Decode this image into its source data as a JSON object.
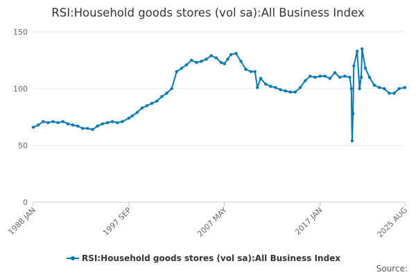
{
  "chart_data": {
    "type": "line",
    "title": "RSI:Household goods stores (vol sa):All Business Index",
    "xlabel": "",
    "ylabel": "",
    "ylim": [
      0,
      150
    ],
    "yticks": [
      0,
      50,
      100,
      150
    ],
    "x_range": [
      "1988 JAN",
      "2025 AUG"
    ],
    "xticks": [
      "1988 JAN",
      "1997 SEP",
      "2007 MAY",
      "2017 JAN",
      "2025 AUG"
    ],
    "grid": "horizontal",
    "legend_position": "bottom",
    "series": [
      {
        "name": "RSI:Household goods stores (vol sa):All Business Index",
        "color": "#0077b3",
        "points": [
          [
            "1988 JAN",
            66
          ],
          [
            "1988 JUL",
            68
          ],
          [
            "1989 JAN",
            71
          ],
          [
            "1989 JUL",
            70
          ],
          [
            "1990 JAN",
            71
          ],
          [
            "1990 JUL",
            70
          ],
          [
            "1991 JAN",
            71
          ],
          [
            "1991 JUL",
            69
          ],
          [
            "1992 JAN",
            68
          ],
          [
            "1992 JUL",
            67
          ],
          [
            "1993 JAN",
            65
          ],
          [
            "1993 JUL",
            65
          ],
          [
            "1994 JAN",
            64
          ],
          [
            "1994 JUL",
            67
          ],
          [
            "1995 JAN",
            69
          ],
          [
            "1995 JUL",
            70
          ],
          [
            "1996 JAN",
            71
          ],
          [
            "1996 JUL",
            70
          ],
          [
            "1997 JAN",
            71
          ],
          [
            "1997 SEP",
            74
          ],
          [
            "1998 JAN",
            76
          ],
          [
            "1998 JUL",
            79
          ],
          [
            "1999 JAN",
            83
          ],
          [
            "1999 JUL",
            85
          ],
          [
            "2000 JAN",
            87
          ],
          [
            "2000 JUL",
            89
          ],
          [
            "2001 JAN",
            93
          ],
          [
            "2001 JUL",
            96
          ],
          [
            "2002 JAN",
            100
          ],
          [
            "2002 JUL",
            115
          ],
          [
            "2003 JAN",
            118
          ],
          [
            "2003 JUL",
            121
          ],
          [
            "2004 JAN",
            125
          ],
          [
            "2004 JUL",
            123
          ],
          [
            "2005 JAN",
            124
          ],
          [
            "2005 JUL",
            126
          ],
          [
            "2006 JAN",
            129
          ],
          [
            "2006 JUL",
            127
          ],
          [
            "2007 JAN",
            123
          ],
          [
            "2007 MAY",
            122
          ],
          [
            "2007 SEP",
            126
          ],
          [
            "2008 JAN",
            130
          ],
          [
            "2008 JUL",
            131
          ],
          [
            "2009 JAN",
            124
          ],
          [
            "2009 JUL",
            117
          ],
          [
            "2010 JAN",
            115
          ],
          [
            "2010 JUN",
            115
          ],
          [
            "2010 SEP",
            101
          ],
          [
            "2011 JAN",
            109
          ],
          [
            "2011 JUL",
            104
          ],
          [
            "2012 JAN",
            102
          ],
          [
            "2012 JUL",
            101
          ],
          [
            "2013 JAN",
            99
          ],
          [
            "2013 JUL",
            98
          ],
          [
            "2014 JAN",
            97
          ],
          [
            "2014 JUL",
            97
          ],
          [
            "2015 JAN",
            101
          ],
          [
            "2015 JUL",
            107
          ],
          [
            "2016 JAN",
            111
          ],
          [
            "2016 JUL",
            110
          ],
          [
            "2017 JAN",
            111
          ],
          [
            "2017 JUL",
            111
          ],
          [
            "2018 JAN",
            109
          ],
          [
            "2018 JUL",
            114
          ],
          [
            "2019 JAN",
            110
          ],
          [
            "2019 JUL",
            111
          ],
          [
            "2020 JAN",
            110
          ],
          [
            "2020 MAR",
            100
          ],
          [
            "2020 APR",
            54
          ],
          [
            "2020 MAY",
            78
          ],
          [
            "2020 JUN",
            120
          ],
          [
            "2020 OCT",
            133
          ],
          [
            "2021 JAN",
            100
          ],
          [
            "2021 MAR",
            110
          ],
          [
            "2021 APR",
            135
          ],
          [
            "2021 AUG",
            118
          ],
          [
            "2022 JAN",
            110
          ],
          [
            "2022 JUL",
            103
          ],
          [
            "2023 JAN",
            101
          ],
          [
            "2023 JUL",
            100
          ],
          [
            "2024 JAN",
            96
          ],
          [
            "2024 JUL",
            96
          ],
          [
            "2025 JAN",
            100
          ],
          [
            "2025 AUG",
            101
          ]
        ]
      }
    ]
  },
  "footer": {
    "source_label": "Source:"
  }
}
